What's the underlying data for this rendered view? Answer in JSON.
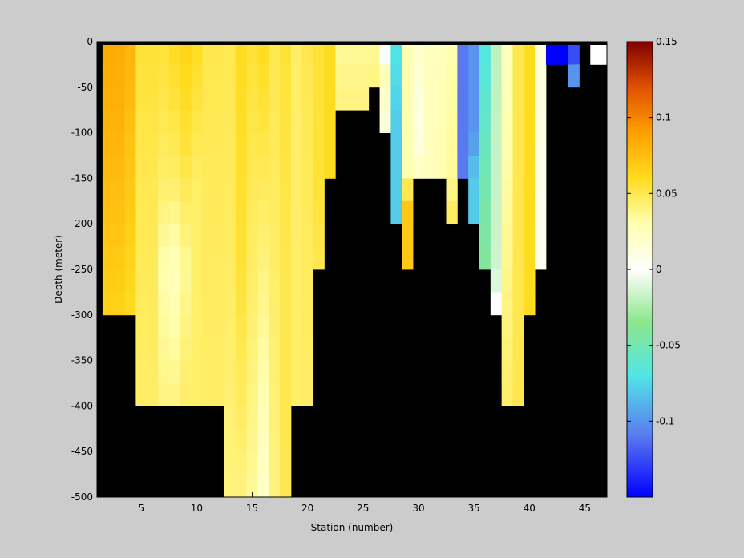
{
  "chart_data": {
    "type": "heatmap",
    "title": "",
    "xlabel": "Station (number)",
    "ylabel": "Depth (meter)",
    "xlim": [
      1,
      47
    ],
    "ylim": [
      -500,
      0
    ],
    "x_ticks": [
      5,
      10,
      15,
      20,
      25,
      30,
      35,
      40,
      45
    ],
    "y_ticks": [
      0,
      -50,
      -100,
      -150,
      -200,
      -250,
      -300,
      -350,
      -400,
      -450,
      -500
    ],
    "depth_bin": 25,
    "grid": false,
    "background_color": "#000000",
    "colorbar": {
      "position": "right",
      "range": [
        -0.15,
        0.15
      ],
      "ticks": [
        0.15,
        0.1,
        0.05,
        0,
        -0.05,
        -0.1
      ],
      "tick_labels": [
        "0.15",
        "0.1",
        "0.05",
        "0",
        "-0.05",
        "-0.1"
      ],
      "colormap": [
        {
          "v": -0.15,
          "color": "#0000ff"
        },
        {
          "v": -0.11,
          "color": "#5a78f0"
        },
        {
          "v": -0.07,
          "color": "#50e6e6"
        },
        {
          "v": -0.035,
          "color": "#8ce68c"
        },
        {
          "v": 0,
          "color": "#ffffff"
        },
        {
          "v": 0.03,
          "color": "#ffffb0"
        },
        {
          "v": 0.06,
          "color": "#ffdc1e"
        },
        {
          "v": 0.09,
          "color": "#ffa000"
        },
        {
          "v": 0.12,
          "color": "#e05000"
        },
        {
          "v": 0.15,
          "color": "#800000"
        }
      ]
    },
    "stations": [
      {
        "x": 2,
        "max_depth": 300,
        "profile": [
          [
            0,
            0.085
          ],
          [
            100,
            0.08
          ],
          [
            300,
            0.065
          ]
        ]
      },
      {
        "x": 3,
        "max_depth": 300,
        "profile": [
          [
            0,
            0.085
          ],
          [
            100,
            0.08
          ],
          [
            300,
            0.065
          ]
        ]
      },
      {
        "x": 4,
        "max_depth": 300,
        "profile": [
          [
            0,
            0.08
          ],
          [
            150,
            0.07
          ],
          [
            300,
            0.06
          ]
        ]
      },
      {
        "x": 5,
        "max_depth": 400,
        "profile": [
          [
            0,
            0.055
          ],
          [
            150,
            0.05
          ],
          [
            400,
            0.045
          ]
        ]
      },
      {
        "x": 6,
        "max_depth": 400,
        "profile": [
          [
            0,
            0.055
          ],
          [
            150,
            0.05
          ],
          [
            400,
            0.045
          ]
        ]
      },
      {
        "x": 7,
        "max_depth": 400,
        "profile": [
          [
            0,
            0.055
          ],
          [
            150,
            0.045
          ],
          [
            250,
            0.03
          ],
          [
            400,
            0.04
          ]
        ]
      },
      {
        "x": 8,
        "max_depth": 400,
        "profile": [
          [
            0,
            0.06
          ],
          [
            150,
            0.045
          ],
          [
            250,
            0.025
          ],
          [
            400,
            0.04
          ]
        ]
      },
      {
        "x": 9,
        "max_depth": 400,
        "profile": [
          [
            0,
            0.065
          ],
          [
            150,
            0.05
          ],
          [
            250,
            0.035
          ],
          [
            400,
            0.045
          ]
        ]
      },
      {
        "x": 10,
        "max_depth": 400,
        "profile": [
          [
            0,
            0.06
          ],
          [
            150,
            0.045
          ],
          [
            400,
            0.045
          ]
        ]
      },
      {
        "x": 11,
        "max_depth": 400,
        "profile": [
          [
            0,
            0.05
          ],
          [
            400,
            0.045
          ]
        ]
      },
      {
        "x": 12,
        "max_depth": 400,
        "profile": [
          [
            0,
            0.05
          ],
          [
            400,
            0.045
          ]
        ]
      },
      {
        "x": 13,
        "max_depth": 500,
        "profile": [
          [
            0,
            0.05
          ],
          [
            300,
            0.045
          ],
          [
            500,
            0.04
          ]
        ]
      },
      {
        "x": 14,
        "max_depth": 500,
        "profile": [
          [
            0,
            0.06
          ],
          [
            250,
            0.055
          ],
          [
            500,
            0.04
          ]
        ]
      },
      {
        "x": 15,
        "max_depth": 500,
        "profile": [
          [
            0,
            0.055
          ],
          [
            250,
            0.045
          ],
          [
            500,
            0.035
          ]
        ]
      },
      {
        "x": 16,
        "max_depth": 500,
        "profile": [
          [
            0,
            0.06
          ],
          [
            250,
            0.04
          ],
          [
            500,
            0.02
          ]
        ]
      },
      {
        "x": 17,
        "max_depth": 500,
        "profile": [
          [
            0,
            0.05
          ],
          [
            250,
            0.045
          ],
          [
            500,
            0.04
          ]
        ]
      },
      {
        "x": 18,
        "max_depth": 500,
        "profile": [
          [
            0,
            0.055
          ],
          [
            250,
            0.05
          ],
          [
            500,
            0.05
          ]
        ]
      },
      {
        "x": 19,
        "max_depth": 400,
        "profile": [
          [
            0,
            0.045
          ],
          [
            400,
            0.045
          ]
        ]
      },
      {
        "x": 20,
        "max_depth": 400,
        "profile": [
          [
            0,
            0.05
          ],
          [
            400,
            0.045
          ]
        ]
      },
      {
        "x": 21,
        "max_depth": 250,
        "profile": [
          [
            0,
            0.055
          ],
          [
            150,
            0.055
          ],
          [
            250,
            0.05
          ]
        ]
      },
      {
        "x": 22,
        "max_depth": 150,
        "profile": [
          [
            0,
            0.06
          ],
          [
            150,
            0.06
          ]
        ]
      },
      {
        "x": 23,
        "max_depth": 75,
        "profile": [
          [
            0,
            0.035
          ],
          [
            75,
            0.04
          ]
        ]
      },
      {
        "x": 24,
        "max_depth": 75,
        "profile": [
          [
            0,
            0.035
          ],
          [
            75,
            0.04
          ]
        ]
      },
      {
        "x": 25,
        "max_depth": 75,
        "profile": [
          [
            0,
            0.035
          ],
          [
            75,
            0.04
          ]
        ]
      },
      {
        "x": 26,
        "max_depth": 50,
        "profile": [
          [
            0,
            0.035
          ],
          [
            50,
            0.04
          ]
        ]
      },
      {
        "x": 27,
        "max_depth": 100,
        "profile": [
          [
            0,
            -0.035
          ],
          [
            25,
            0.03
          ],
          [
            100,
            0.01
          ]
        ]
      },
      {
        "x": 28,
        "max_depth": 200,
        "profile": [
          [
            0,
            -0.07
          ],
          [
            100,
            -0.08
          ],
          [
            200,
            -0.08
          ]
        ]
      },
      {
        "x": 29,
        "max_depth": 250,
        "profile": [
          [
            0,
            0.03
          ],
          [
            150,
            0.03
          ],
          [
            175,
            0.07
          ],
          [
            250,
            0.07
          ]
        ]
      },
      {
        "x": 30,
        "max_depth": 150,
        "profile": [
          [
            0,
            0.02
          ],
          [
            100,
            0.01
          ],
          [
            150,
            0.025
          ]
        ]
      },
      {
        "x": 31,
        "max_depth": 150,
        "profile": [
          [
            0,
            0.025
          ],
          [
            150,
            0.025
          ]
        ]
      },
      {
        "x": 32,
        "max_depth": 150,
        "profile": [
          [
            0,
            0.025
          ],
          [
            150,
            0.03
          ]
        ]
      },
      {
        "x": 33,
        "max_depth": 200,
        "profile": [
          [
            0,
            0.03
          ],
          [
            150,
            0.035
          ],
          [
            200,
            0.05
          ]
        ]
      },
      {
        "x": 34,
        "max_depth": 150,
        "profile": [
          [
            0,
            -0.11
          ],
          [
            150,
            -0.11
          ]
        ]
      },
      {
        "x": 35,
        "max_depth": 200,
        "profile": [
          [
            0,
            -0.1
          ],
          [
            100,
            -0.1
          ],
          [
            150,
            -0.08
          ],
          [
            200,
            -0.08
          ]
        ]
      },
      {
        "x": 36,
        "max_depth": 250,
        "profile": [
          [
            0,
            -0.07
          ],
          [
            150,
            -0.05
          ],
          [
            250,
            -0.04
          ]
        ]
      },
      {
        "x": 37,
        "max_depth": 300,
        "profile": [
          [
            0,
            -0.02
          ],
          [
            250,
            -0.015
          ],
          [
            300,
            0.005
          ]
        ]
      },
      {
        "x": 38,
        "max_depth": 400,
        "profile": [
          [
            0,
            0.025
          ],
          [
            400,
            0.045
          ]
        ]
      },
      {
        "x": 39,
        "max_depth": 400,
        "profile": [
          [
            0,
            0.05
          ],
          [
            400,
            0.05
          ]
        ]
      },
      {
        "x": 40,
        "max_depth": 300,
        "profile": [
          [
            0,
            0.06
          ],
          [
            300,
            0.06
          ]
        ]
      },
      {
        "x": 41,
        "max_depth": 250,
        "profile": [
          [
            0,
            0.015
          ],
          [
            250,
            0.005
          ]
        ]
      },
      {
        "x": 42,
        "max_depth": 25,
        "profile": [
          [
            0,
            -0.15
          ],
          [
            25,
            -0.15
          ]
        ]
      },
      {
        "x": 43,
        "max_depth": 25,
        "profile": [
          [
            0,
            -0.15
          ],
          [
            25,
            -0.15
          ]
        ]
      },
      {
        "x": 44,
        "max_depth": 50,
        "profile": [
          [
            0,
            -0.13
          ],
          [
            25,
            -0.12
          ],
          [
            50,
            -0.08
          ]
        ]
      },
      {
        "x": 46,
        "max_depth": 25,
        "profile": [
          [
            0,
            0.0
          ],
          [
            25,
            0.0
          ]
        ]
      },
      {
        "x": 47,
        "max_depth": 25,
        "profile": [
          [
            0,
            0.0
          ],
          [
            25,
            0.0
          ]
        ]
      }
    ]
  }
}
